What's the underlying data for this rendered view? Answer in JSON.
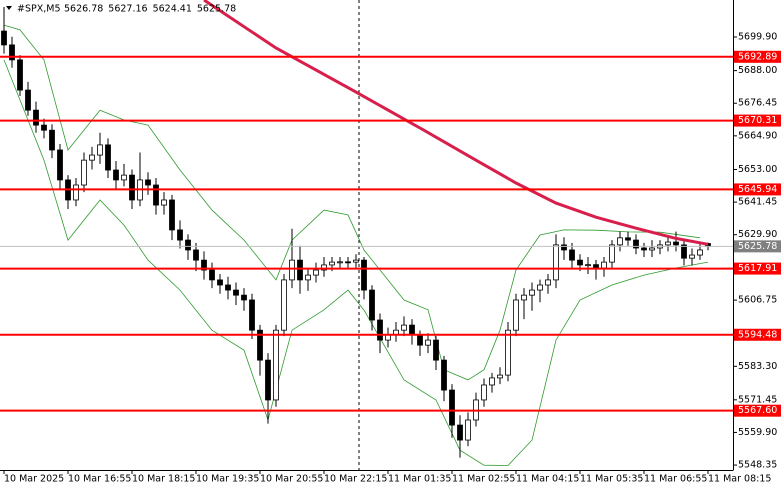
{
  "chart_data": {
    "type": "candlestick",
    "title": "#SPX,M5",
    "candles": [
      [
        5702,
        5710.5,
        5694,
        5697.1
      ],
      [
        5697.1,
        5700,
        5689,
        5691.8
      ],
      [
        5691.8,
        5693.5,
        5679,
        5681.1
      ],
      [
        5681.1,
        5684,
        5672,
        5674.0
      ],
      [
        5674.0,
        5677,
        5666,
        5668.7
      ],
      [
        5668.7,
        5671,
        5664,
        5666.9
      ],
      [
        5666.9,
        5669,
        5657,
        5659.9
      ],
      [
        5659.9,
        5662,
        5646,
        5649.3
      ],
      [
        5649.3,
        5651,
        5639,
        5642.2
      ],
      [
        5642.2,
        5650,
        5640,
        5647.5
      ],
      [
        5647.5,
        5659,
        5645,
        5656.3
      ],
      [
        5656.3,
        5661,
        5653,
        5658.1
      ],
      [
        5658.1,
        5666,
        5655,
        5661.7
      ],
      [
        5661.7,
        5664,
        5650,
        5652.8
      ],
      [
        5652.8,
        5656,
        5646,
        5649.3
      ],
      [
        5649.3,
        5655,
        5647,
        5651.0
      ],
      [
        5651.0,
        5653,
        5639,
        5642.2
      ],
      [
        5642.2,
        5659,
        5640,
        5649.3
      ],
      [
        5649.3,
        5652,
        5644,
        5647.5
      ],
      [
        5647.5,
        5650,
        5637,
        5640.4
      ],
      [
        5640.4,
        5645,
        5637,
        5642.2
      ],
      [
        5642.2,
        5644,
        5628,
        5631.6
      ],
      [
        5631.6,
        5635,
        5625,
        5628.0
      ],
      [
        5628.0,
        5630,
        5621,
        5624.5
      ],
      [
        5624.5,
        5627,
        5617,
        5620.9
      ],
      [
        5620.9,
        5624,
        5614,
        5617.4
      ],
      [
        5617.4,
        5620,
        5611,
        5613.9
      ],
      [
        5613.9,
        5616,
        5609,
        5612.1
      ],
      [
        5612.1,
        5615,
        5607,
        5610.3
      ],
      [
        5610.3,
        5613,
        5605,
        5608.5
      ],
      [
        5608.5,
        5611,
        5603,
        5606.8
      ],
      [
        5606.8,
        5609,
        5593,
        5596.1
      ],
      [
        5596.1,
        5598,
        5580,
        5585.5
      ],
      [
        5585.5,
        5588,
        5563,
        5571.4
      ],
      [
        5571.4,
        5598,
        5569,
        5596.1
      ],
      [
        5596.1,
        5616,
        5594,
        5613.9
      ],
      [
        5613.9,
        5632,
        5611,
        5620.9
      ],
      [
        5620.9,
        5626,
        5609,
        5613.9
      ],
      [
        5613.9,
        5618,
        5610,
        5615.6
      ],
      [
        5615.6,
        5620,
        5613,
        5617.4
      ],
      [
        5617.4,
        5622,
        5615,
        5619.2
      ],
      [
        5619.2,
        5622,
        5617,
        5620.2
      ],
      [
        5620.2,
        5622,
        5618,
        5620.3
      ],
      [
        5620.3,
        5622,
        5618,
        5620.2
      ],
      [
        5620.2,
        5623,
        5618,
        5620.9
      ],
      [
        5620.9,
        5622,
        5607,
        5610.3
      ],
      [
        5610.3,
        5612,
        5596,
        5599.7
      ],
      [
        5599.7,
        5602,
        5588,
        5592.6
      ],
      [
        5592.6,
        5597,
        5590,
        5594.4
      ],
      [
        5594.4,
        5599,
        5592,
        5596.1
      ],
      [
        5596.1,
        5601,
        5594,
        5597.9
      ],
      [
        5597.9,
        5600,
        5591,
        5594.4
      ],
      [
        5594.4,
        5596,
        5587,
        5590.8
      ],
      [
        5590.8,
        5595,
        5588,
        5592.6
      ],
      [
        5592.6,
        5594,
        5582,
        5585.5
      ],
      [
        5585.5,
        5587,
        5571,
        5574.9
      ],
      [
        5574.9,
        5577,
        5558,
        5562.5
      ],
      [
        5562.5,
        5566,
        5551,
        5557.2
      ],
      [
        5557.2,
        5567,
        5555,
        5564.3
      ],
      [
        5564.3,
        5574,
        5562,
        5571.4
      ],
      [
        5571.4,
        5579,
        5569,
        5576.7
      ],
      [
        5576.7,
        5581,
        5574,
        5579.2
      ],
      [
        5579.2,
        5583,
        5577,
        5580.2
      ],
      [
        5580.2,
        5599,
        5578,
        5596.1
      ],
      [
        5596.1,
        5609,
        5594,
        5606.8
      ],
      [
        5606.8,
        5611,
        5600,
        5608.5
      ],
      [
        5608.5,
        5613,
        5603,
        5610.3
      ],
      [
        5610.3,
        5614,
        5606,
        5612.1
      ],
      [
        5612.1,
        5616,
        5609,
        5613.9
      ],
      [
        5613.9,
        5630,
        5611,
        5626.3
      ],
      [
        5626.3,
        5629,
        5621,
        5624.5
      ],
      [
        5624.5,
        5627,
        5618,
        5620.9
      ],
      [
        5620.9,
        5623,
        5617,
        5619.2
      ],
      [
        5619.2,
        5622,
        5616,
        5619.3
      ],
      [
        5619.3,
        5621,
        5614,
        5618.1
      ],
      [
        5618.1,
        5622,
        5615,
        5620.2
      ],
      [
        5620.2,
        5628,
        5618,
        5626.3
      ],
      [
        5626.3,
        5631,
        5624,
        5628.8
      ],
      [
        5628.8,
        5631,
        5626,
        5628.0
      ],
      [
        5628.0,
        5630,
        5623,
        5625.2
      ],
      [
        5625.2,
        5627,
        5622,
        5624.5
      ],
      [
        5624.5,
        5628,
        5622,
        5625.2
      ],
      [
        5625.2,
        5628,
        5623,
        5626.3
      ],
      [
        5626.3,
        5629,
        5624,
        5627.3
      ],
      [
        5627.3,
        5631,
        5624,
        5626.3
      ],
      [
        5626.3,
        5628,
        5619,
        5621.6
      ],
      [
        5621.6,
        5625,
        5619,
        5622.7
      ],
      [
        5622.7,
        5627,
        5621,
        5624.5
      ],
      [
        5626.78,
        5627.16,
        5624.41,
        5625.78
      ]
    ],
    "ma": {
      "color": "#d81e4a",
      "x": [
        25,
        34,
        44,
        52,
        59,
        64,
        69,
        74,
        79,
        84,
        88
      ],
      "values": [
        5713.0,
        5696.0,
        5680.4,
        5667.7,
        5656.3,
        5648.2,
        5641.1,
        5636.1,
        5632.2,
        5628.6,
        5626.5
      ]
    },
    "bands_color": "#2e9a2e",
    "bands": [
      {
        "x": [
          0,
          2,
          5,
          8,
          12,
          15,
          18,
          22,
          26,
          30,
          34,
          36,
          40,
          43,
          45,
          50,
          53,
          55,
          58,
          60,
          62,
          64,
          67,
          70,
          74,
          78,
          82,
          87
        ],
        "values": [
          5704.1,
          5702.4,
          5691.8,
          5659.9,
          5674.0,
          5670.5,
          5668.7,
          5652.8,
          5638.6,
          5628.0,
          5613.9,
          5628.0,
          5638.6,
          5636.9,
          5624.5,
          5606.8,
          5603.3,
          5582.1,
          5578.5,
          5582.1,
          5596.1,
          5617.4,
          5629.8,
          5631.6,
          5631.5,
          5630.9,
          5630.8,
          5628.8
        ]
      },
      {
        "x": [
          0,
          2,
          5,
          8,
          12,
          15,
          18,
          22,
          26,
          30,
          33,
          36,
          40,
          43,
          45,
          50,
          54,
          57,
          60,
          63,
          66,
          69,
          72,
          76,
          80,
          84,
          88
        ],
        "values": [
          5691.8,
          5677.6,
          5656.3,
          5628.0,
          5642.2,
          5633.3,
          5620.9,
          5610.3,
          5596.1,
          5589.0,
          5564.3,
          5596.1,
          5603.3,
          5610.3,
          5603.2,
          5578.5,
          5571.4,
          5553.6,
          5548.3,
          5548.2,
          5557.2,
          5592.6,
          5606.8,
          5612.1,
          5615.6,
          5618.1,
          5620.2
        ]
      }
    ],
    "levels": {
      "color": "#ff0000",
      "values": [
        5692.89,
        5670.31,
        5645.94,
        5617.91,
        5594.48,
        {
          "value": 5567.6,
          "label": "5567.60"
        }
      ]
    },
    "ylim": [
      5546.6,
      5713.0
    ],
    "yticks": [
      {
        "value": 5699.9,
        "label": "5699.90"
      },
      {
        "value": 5688,
        "label": "5688.00"
      },
      5676.45,
      {
        "value": 5664.9,
        "label": "5664.90"
      },
      {
        "value": 5653,
        "label": "5653.00"
      },
      5641.45,
      {
        "value": 5629.9,
        "label": "5629.90"
      },
      5606.75,
      {
        "value": 5583.3,
        "label": "5583.30"
      },
      5571.45,
      {
        "value": 5559.9,
        "label": "5559.90"
      },
      5548.35
    ],
    "xlim": [
      -0.5,
      91.125
    ],
    "xticks": [
      {
        "value": 0,
        "label": "10 Mar 2025"
      },
      {
        "value": 8,
        "label": "10 Mar 16:55"
      },
      {
        "value": 16,
        "label": "10 Mar 18:15"
      },
      {
        "value": 24,
        "label": "10 Mar 19:35"
      },
      {
        "value": 32,
        "label": "10 Mar 20:55"
      },
      {
        "value": 40,
        "label": "10 Mar 22:15"
      },
      {
        "value": 48,
        "label": "11 Mar 01:35"
      },
      {
        "value": 56,
        "label": "11 Mar 02:55"
      },
      {
        "value": 64,
        "label": "11 Mar 04:15"
      },
      {
        "value": 72,
        "label": "11 Mar 05:35"
      },
      {
        "value": 80,
        "label": "11 Mar 06:55"
      },
      {
        "value": 88,
        "label": "11 Mar 08:15"
      }
    ]
  }
}
